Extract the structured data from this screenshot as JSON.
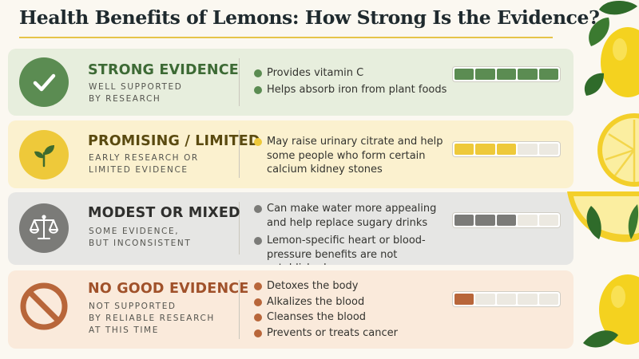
{
  "title": "Health Benefits of Lemons: How Strong Is the Evidence?",
  "colors": {
    "strong": "#5b8c52",
    "promising": "#eec93a",
    "modest": "#7b7b78",
    "none": "#b8663a",
    "empty_segment": "#ece9e1"
  },
  "tiers": [
    {
      "id": "strong",
      "icon": "checkmark-icon",
      "heading": "STRONG EVIDENCE",
      "sub": [
        "WELL SUPPORTED",
        "BY RESEARCH"
      ],
      "bullets": [
        "Provides vitamin C",
        "Helps absorb iron from plant foods"
      ],
      "meter_level": 5,
      "meter_max": 5
    },
    {
      "id": "promising",
      "icon": "seedling-icon",
      "heading": "PROMISING / LIMITED",
      "sub": [
        "EARLY RESEARCH OR",
        "LIMITED EVIDENCE"
      ],
      "bullets": [
        "May raise urinary citrate and help some people who form certain calcium kidney stones"
      ],
      "meter_level": 3,
      "meter_max": 5
    },
    {
      "id": "modest",
      "icon": "balance-scale-icon",
      "heading": "MODEST OR MIXED",
      "sub": [
        "SOME EVIDENCE,",
        "BUT INCONSISTENT"
      ],
      "bullets": [
        "Can make water more appealing and help replace sugary drinks",
        "Lemon-specific heart or blood-pressure benefits are not established"
      ],
      "meter_level": 3,
      "meter_max": 5
    },
    {
      "id": "none",
      "icon": "prohibited-icon",
      "heading": "NO GOOD EVIDENCE",
      "sub": [
        "NOT SUPPORTED",
        "BY RELIABLE RESEARCH",
        "AT THIS TIME"
      ],
      "bullets": [
        "Detoxes the body",
        "Alkalizes the blood",
        "Cleanses the blood",
        "Prevents or treats cancer"
      ],
      "meter_level": 1,
      "meter_max": 5
    }
  ]
}
